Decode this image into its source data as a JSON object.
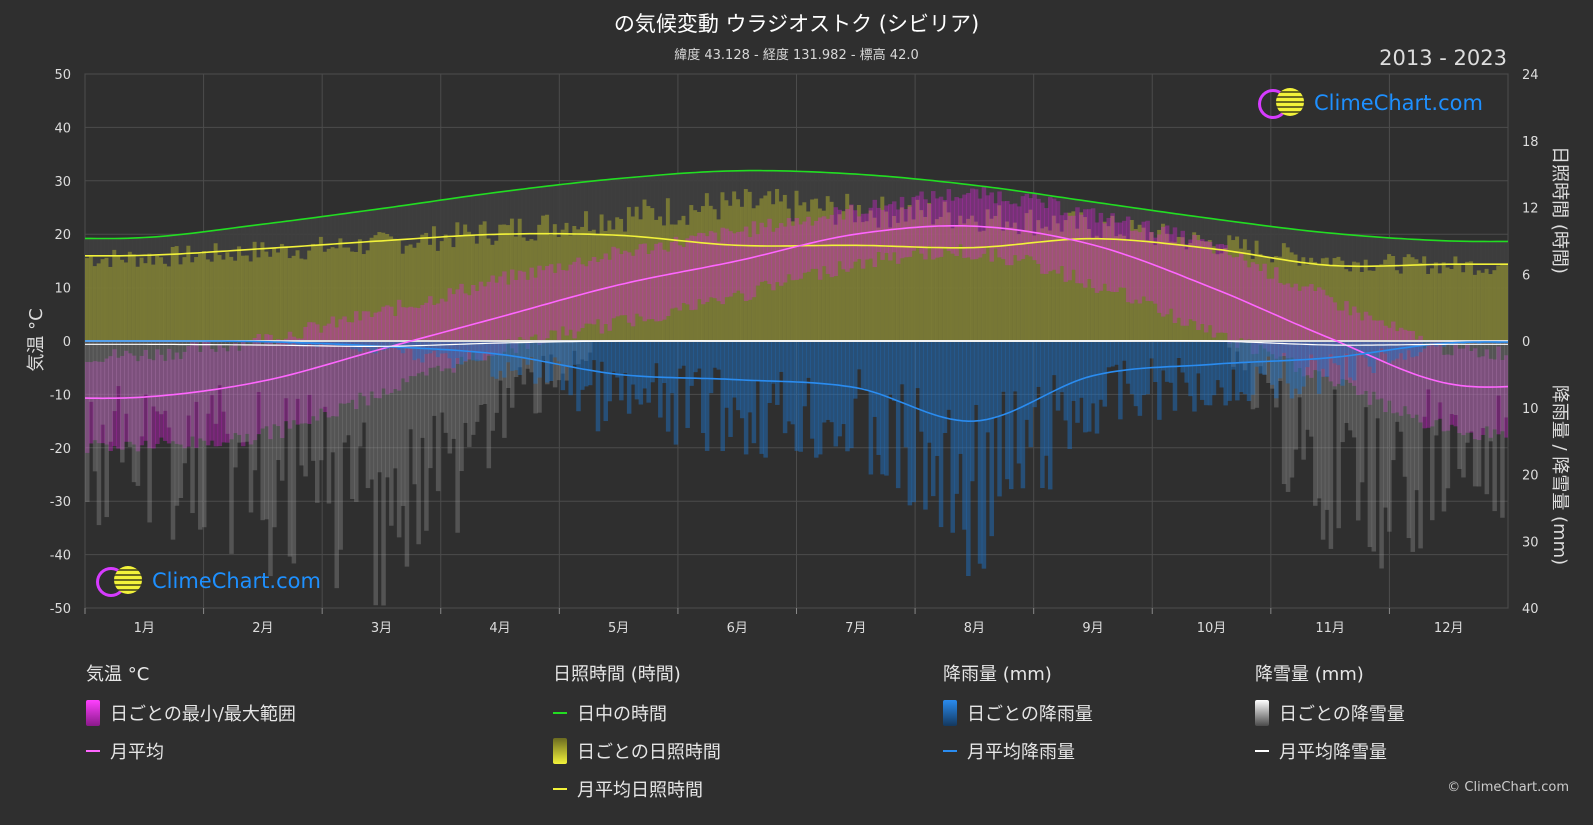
{
  "title": "の気候変動 ウラジオストク (シビリア)",
  "subtitle": "緯度 43.128 - 経度 131.982 - 標高 42.0",
  "years": "2013 - 2023",
  "brand": "ClimeChart.com",
  "copyright": "© ClimeChart.com",
  "colors": {
    "background": "#2f2f2f",
    "temp_range": "#e020e0",
    "temp_mean": "#ff66ff",
    "daylight": "#22dd22",
    "sunshine_bar": "#a8a830",
    "sunshine_mean": "#f2f23a",
    "rain_bar": "#1f6fc0",
    "rain_mean": "#2a8cf0",
    "snow_bar": "#9a9a9a",
    "snow_mean": "#ffffff"
  },
  "legend": {
    "temp": {
      "head": "気温 °C",
      "range": "日ごとの最小/最大範囲",
      "mean": "月平均"
    },
    "sun": {
      "head": "日照時間 (時間)",
      "daylight": "日中の時間",
      "daily": "日ごとの日照時間",
      "mean": "月平均日照時間"
    },
    "rain": {
      "head": "降雨量 (mm)",
      "daily": "日ごとの降雨量",
      "mean": "月平均降雨量"
    },
    "snow": {
      "head": "降雪量 (mm)",
      "daily": "日ごとの降雪量",
      "mean": "月平均降雪量"
    }
  },
  "chart_data": {
    "type": "line",
    "categories": [
      "1月",
      "2月",
      "3月",
      "4月",
      "5月",
      "6月",
      "7月",
      "8月",
      "9月",
      "10月",
      "11月",
      "12月"
    ],
    "y_left": {
      "label": "気温 °C",
      "range": [
        -50,
        50
      ],
      "ticks": [
        50,
        40,
        30,
        20,
        10,
        0,
        -10,
        -20,
        -30,
        -40,
        -50
      ]
    },
    "y_right_top": {
      "label": "日照時間 (時間)",
      "range": [
        0,
        24
      ],
      "ticks": [
        24,
        18,
        12,
        6,
        0
      ]
    },
    "y_right_bottom": {
      "label": "降雨量 / 降雪量 (mm)",
      "range": [
        0,
        40
      ],
      "ticks": [
        0,
        10,
        20,
        30,
        40
      ]
    },
    "grid": true,
    "series": [
      {
        "name": "月平均",
        "axis": "temp",
        "values": [
          -10.5,
          -7.5,
          -1.5,
          4.5,
          10.5,
          15.0,
          20.0,
          21.5,
          18.0,
          10.0,
          0.5,
          -8.0
        ]
      },
      {
        "name": "日ごとの最小/最大範囲",
        "axis": "temp",
        "min": [
          -18,
          -16,
          -8,
          0,
          5,
          10,
          16,
          18,
          12,
          3,
          -6,
          -15
        ],
        "max": [
          -4,
          -1,
          4,
          10,
          15,
          19,
          23,
          26,
          22,
          16,
          6,
          -3
        ]
      },
      {
        "name": "日中の時間",
        "axis": "sun",
        "values": [
          9.3,
          10.5,
          11.9,
          13.4,
          14.6,
          15.3,
          15.0,
          14.0,
          12.5,
          11.0,
          9.7,
          9.0
        ]
      },
      {
        "name": "月平均日照時間",
        "axis": "sun",
        "values": [
          7.7,
          8.3,
          9.0,
          9.6,
          9.5,
          8.6,
          8.6,
          8.4,
          9.2,
          8.3,
          6.8,
          6.9
        ]
      },
      {
        "name": "日ごとの日照時間",
        "axis": "sun",
        "values": [
          7.7,
          8.3,
          9.0,
          10.2,
          11.5,
          12.5,
          12.0,
          11.5,
          10.5,
          9.0,
          7.5,
          7.0
        ]
      },
      {
        "name": "月平均降雨量",
        "axis": "precip",
        "values": [
          0.0,
          0.1,
          0.8,
          2.0,
          5.0,
          5.8,
          7.0,
          12.0,
          5.2,
          3.5,
          2.5,
          0.3
        ]
      },
      {
        "name": "月平均降雪量",
        "axis": "precip",
        "values": [
          0.5,
          0.6,
          0.8,
          0.3,
          0.0,
          0.0,
          0.0,
          0.0,
          0.0,
          0.0,
          0.6,
          0.5
        ]
      }
    ]
  }
}
